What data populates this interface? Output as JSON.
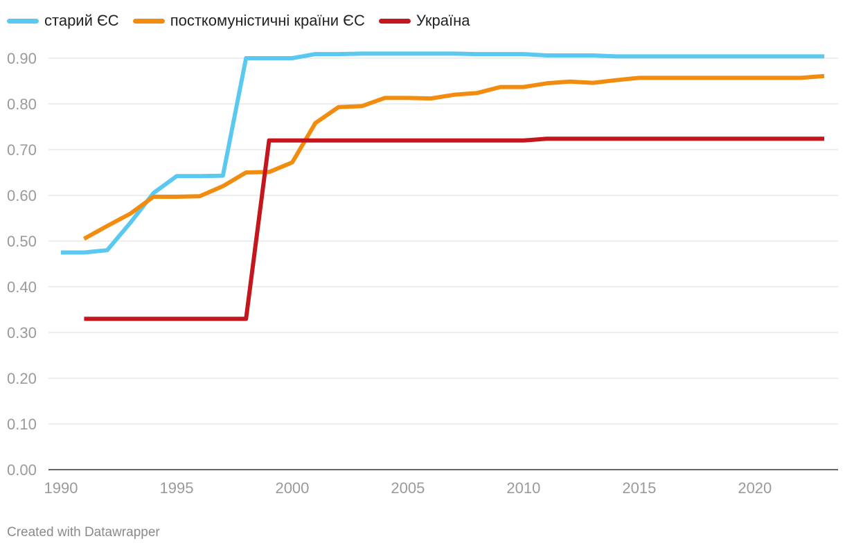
{
  "chart_data": {
    "type": "line",
    "title": "",
    "xlabel": "",
    "ylabel": "",
    "xlim": [
      1990,
      2023
    ],
    "ylim": [
      0,
      0.9
    ],
    "grid": true,
    "legend_position": "top-left",
    "x_ticks": [
      1990,
      1995,
      2000,
      2005,
      2010,
      2015,
      2020
    ],
    "x_tick_labels": [
      "1990",
      "1995",
      "2000",
      "2005",
      "2010",
      "2015",
      "2020"
    ],
    "y_ticks": [
      0,
      0.1,
      0.2,
      0.3,
      0.4,
      0.5,
      0.6,
      0.7,
      0.8,
      0.9
    ],
    "y_tick_labels": [
      "0.00",
      "0.10",
      "0.20",
      "0.30",
      "0.40",
      "0.50",
      "0.60",
      "0.70",
      "0.80",
      "0.90"
    ],
    "series": [
      {
        "name": "старий ЄС",
        "color": "#5bc8f0",
        "points": [
          [
            1990,
            0.475
          ],
          [
            1991,
            0.475
          ],
          [
            1992,
            0.48
          ],
          [
            1993,
            0.54
          ],
          [
            1994,
            0.605
          ],
          [
            1995,
            0.642
          ],
          [
            1996,
            0.642
          ],
          [
            1997,
            0.643
          ],
          [
            1998,
            0.9
          ],
          [
            1999,
            0.9
          ],
          [
            2000,
            0.9
          ],
          [
            2001,
            0.909
          ],
          [
            2002,
            0.909
          ],
          [
            2003,
            0.91
          ],
          [
            2004,
            0.91
          ],
          [
            2005,
            0.91
          ],
          [
            2006,
            0.91
          ],
          [
            2007,
            0.91
          ],
          [
            2008,
            0.909
          ],
          [
            2009,
            0.909
          ],
          [
            2010,
            0.909
          ],
          [
            2011,
            0.906
          ],
          [
            2012,
            0.906
          ],
          [
            2013,
            0.906
          ],
          [
            2014,
            0.904
          ],
          [
            2015,
            0.904
          ],
          [
            2016,
            0.904
          ],
          [
            2017,
            0.904
          ],
          [
            2018,
            0.904
          ],
          [
            2019,
            0.904
          ],
          [
            2020,
            0.904
          ],
          [
            2021,
            0.904
          ],
          [
            2022,
            0.904
          ],
          [
            2023,
            0.904
          ]
        ]
      },
      {
        "name": "посткомуністичні країни ЄС",
        "color": "#f28c0f",
        "points": [
          [
            1991,
            0.505
          ],
          [
            1992,
            0.533
          ],
          [
            1993,
            0.56
          ],
          [
            1994,
            0.597
          ],
          [
            1995,
            0.597
          ],
          [
            1996,
            0.598
          ],
          [
            1997,
            0.62
          ],
          [
            1998,
            0.65
          ],
          [
            1999,
            0.651
          ],
          [
            2000,
            0.672
          ],
          [
            2001,
            0.758
          ],
          [
            2002,
            0.793
          ],
          [
            2003,
            0.795
          ],
          [
            2004,
            0.813
          ],
          [
            2005,
            0.813
          ],
          [
            2006,
            0.812
          ],
          [
            2007,
            0.82
          ],
          [
            2008,
            0.824
          ],
          [
            2009,
            0.837
          ],
          [
            2010,
            0.837
          ],
          [
            2011,
            0.845
          ],
          [
            2012,
            0.849
          ],
          [
            2013,
            0.846
          ],
          [
            2014,
            0.852
          ],
          [
            2015,
            0.857
          ],
          [
            2016,
            0.857
          ],
          [
            2017,
            0.857
          ],
          [
            2018,
            0.857
          ],
          [
            2019,
            0.857
          ],
          [
            2020,
            0.857
          ],
          [
            2021,
            0.857
          ],
          [
            2022,
            0.857
          ],
          [
            2023,
            0.861
          ]
        ]
      },
      {
        "name": "Україна",
        "color": "#c4161c",
        "points": [
          [
            1991,
            0.33
          ],
          [
            1992,
            0.33
          ],
          [
            1993,
            0.33
          ],
          [
            1994,
            0.33
          ],
          [
            1995,
            0.33
          ],
          [
            1996,
            0.33
          ],
          [
            1997,
            0.33
          ],
          [
            1998,
            0.33
          ],
          [
            1999,
            0.72
          ],
          [
            2000,
            0.72
          ],
          [
            2001,
            0.72
          ],
          [
            2002,
            0.72
          ],
          [
            2003,
            0.72
          ],
          [
            2004,
            0.72
          ],
          [
            2005,
            0.72
          ],
          [
            2006,
            0.72
          ],
          [
            2007,
            0.72
          ],
          [
            2008,
            0.72
          ],
          [
            2009,
            0.72
          ],
          [
            2010,
            0.72
          ],
          [
            2011,
            0.724
          ],
          [
            2012,
            0.724
          ],
          [
            2013,
            0.724
          ],
          [
            2014,
            0.724
          ],
          [
            2015,
            0.724
          ],
          [
            2016,
            0.724
          ],
          [
            2017,
            0.724
          ],
          [
            2018,
            0.724
          ],
          [
            2019,
            0.724
          ],
          [
            2020,
            0.724
          ],
          [
            2021,
            0.724
          ],
          [
            2022,
            0.724
          ],
          [
            2023,
            0.724
          ]
        ]
      }
    ]
  },
  "footer": {
    "credit": "Created with Datawrapper"
  }
}
